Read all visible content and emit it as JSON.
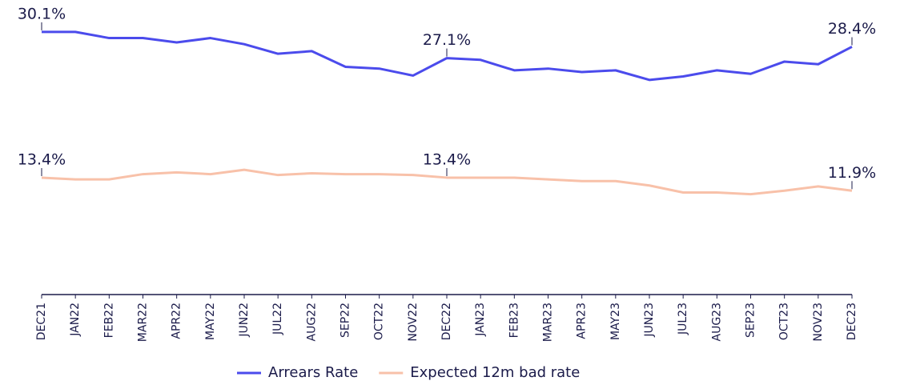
{
  "chart_data": {
    "type": "line",
    "categories": [
      "DEC21",
      "JAN22",
      "FEB22",
      "MAR22",
      "APR22",
      "MAY22",
      "JUN22",
      "JUL22",
      "AUG22",
      "SEP22",
      "OCT22",
      "NOV22",
      "DEC22",
      "JAN23",
      "FEB23",
      "MAR23",
      "APR23",
      "MAY23",
      "JUN23",
      "JUL23",
      "AUG23",
      "SEP23",
      "OCT23",
      "NOV23",
      "DEC23"
    ],
    "series": [
      {
        "name": "Arrears Rate",
        "color": "#4b4bec",
        "values": [
          30.1,
          30.1,
          29.4,
          29.4,
          28.9,
          29.4,
          28.7,
          27.6,
          27.9,
          26.1,
          25.9,
          25.1,
          27.1,
          26.9,
          25.7,
          25.9,
          25.5,
          25.7,
          24.6,
          25.0,
          25.7,
          25.3,
          26.7,
          26.4,
          28.4
        ],
        "value_labels": [
          "30.1%",
          null,
          null,
          null,
          null,
          null,
          null,
          null,
          null,
          null,
          null,
          null,
          "27.1%",
          null,
          null,
          null,
          null,
          null,
          null,
          null,
          null,
          null,
          null,
          null,
          "28.4%"
        ]
      },
      {
        "name": "Expected 12m bad rate",
        "color": "#f8c1a9",
        "values": [
          13.4,
          13.2,
          13.2,
          13.8,
          14.0,
          13.8,
          14.3,
          13.7,
          13.9,
          13.8,
          13.8,
          13.7,
          13.4,
          13.4,
          13.4,
          13.2,
          13.0,
          13.0,
          12.5,
          11.7,
          11.7,
          11.5,
          11.9,
          12.4,
          11.9
        ],
        "value_labels": [
          "13.4%",
          null,
          null,
          null,
          null,
          null,
          null,
          null,
          null,
          null,
          null,
          null,
          "13.4%",
          null,
          null,
          null,
          null,
          null,
          null,
          null,
          null,
          null,
          null,
          null,
          "11.9%"
        ]
      }
    ],
    "ylim": [
      0,
      32
    ],
    "legend": "bottom"
  }
}
